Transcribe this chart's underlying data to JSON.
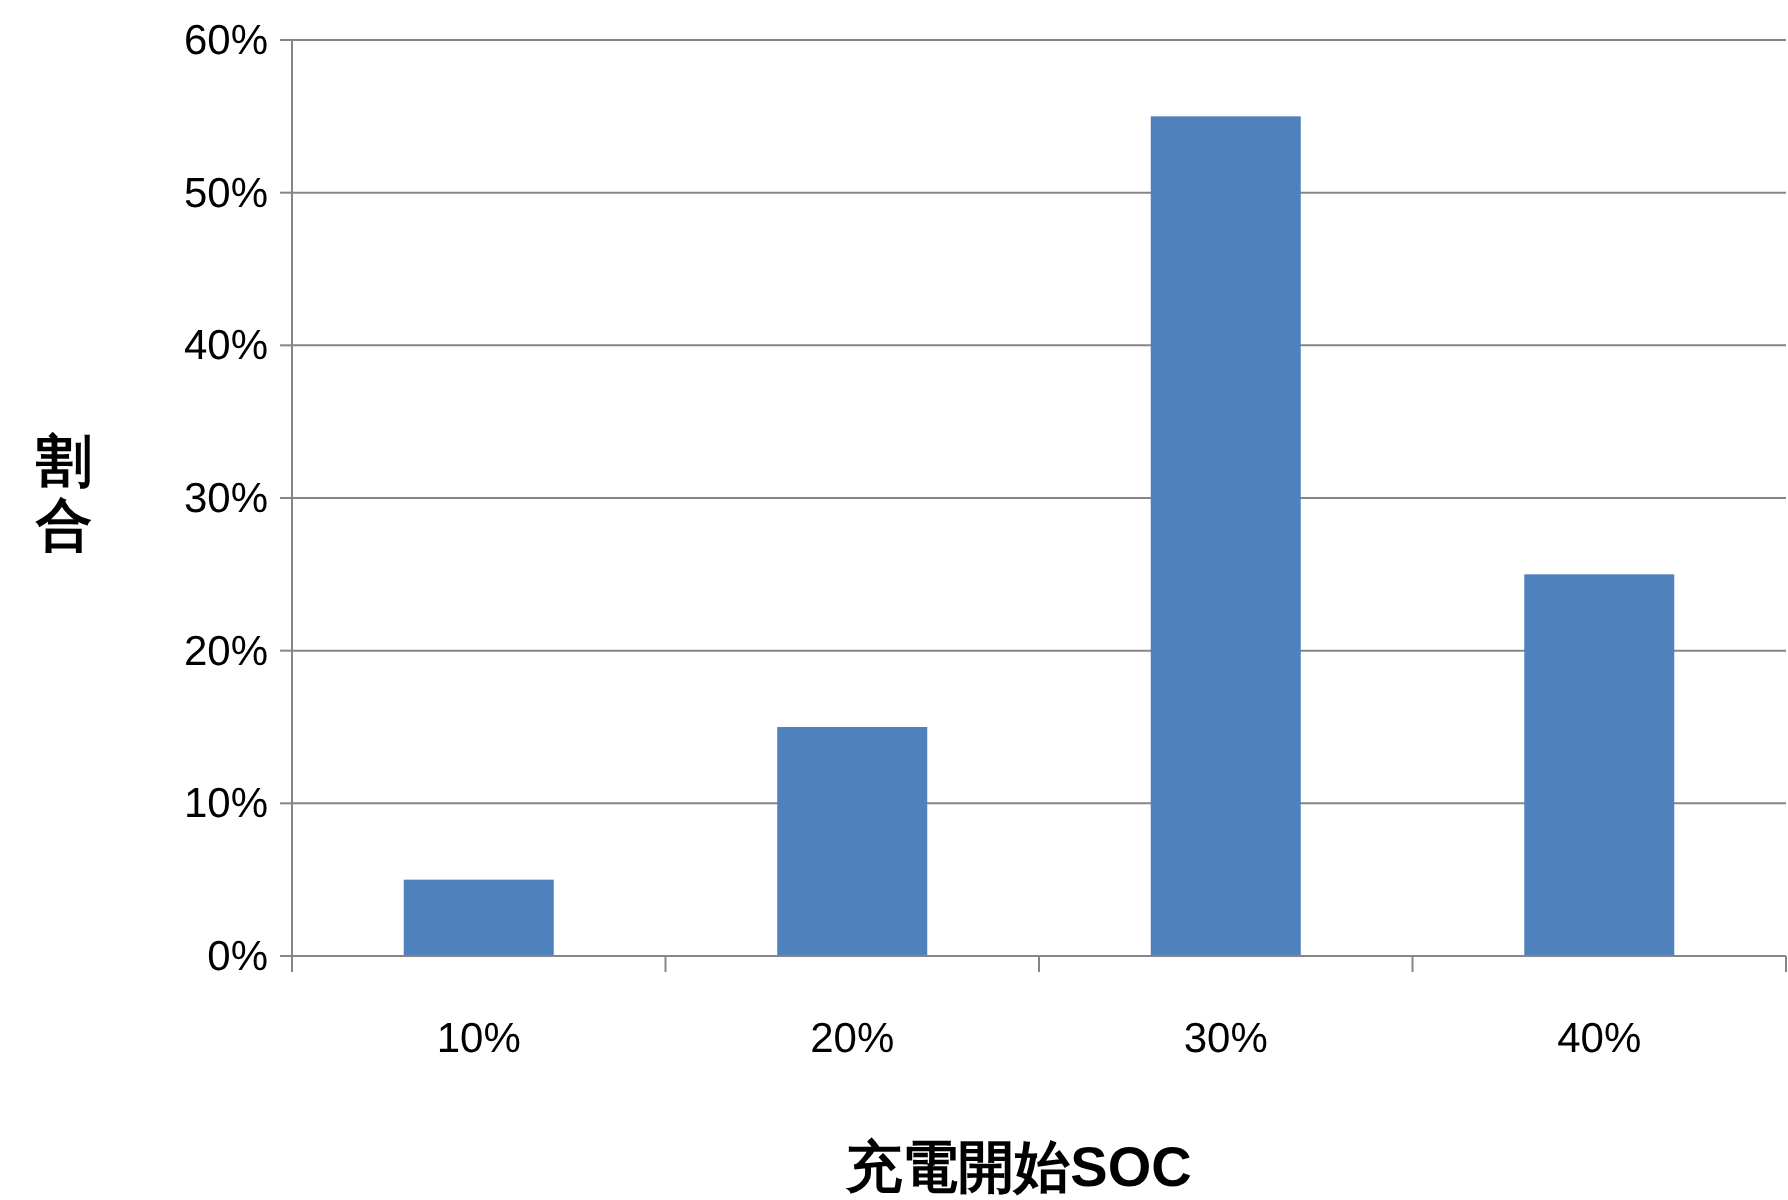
{
  "chart_data": {
    "type": "bar",
    "xlabel": "充電開始SOC",
    "ylabel": "割合",
    "categories": [
      "10%",
      "20%",
      "30%",
      "40%"
    ],
    "values": [
      5,
      15,
      55,
      25
    ],
    "color": "#4f81bd",
    "ylim": [
      0,
      60
    ],
    "yticks": [
      {
        "value": 0,
        "label": "0%"
      },
      {
        "value": 10,
        "label": "10%"
      },
      {
        "value": 20,
        "label": "20%"
      },
      {
        "value": 30,
        "label": "30%"
      },
      {
        "value": 40,
        "label": "40%"
      },
      {
        "value": 50,
        "label": "50%"
      },
      {
        "value": 60,
        "label": "60%"
      }
    ],
    "grid": "y"
  }
}
